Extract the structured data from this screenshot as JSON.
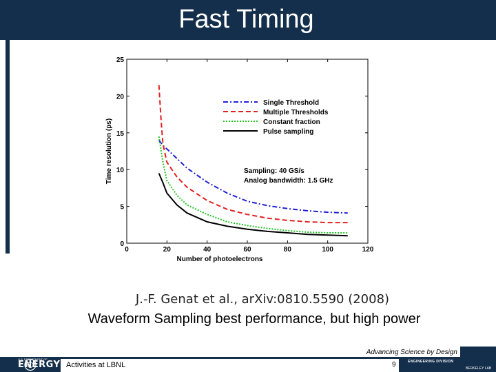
{
  "slide": {
    "title": "Fast Timing",
    "citation": "J.-F. Genat et al., arXiv:0810.5590 (2008)",
    "caption": "Waveform Sampling best performance, but high power",
    "tagline": "Advancing Science by Design",
    "footer_text": "Activities at LBNL",
    "page_number": "9",
    "doe_label": "ENERGY",
    "doe_small": "U.S. DEPARTMENT OF",
    "eng_label": "ENGINEERING DIVISION",
    "lab_label": "BERKELEY LAB"
  },
  "colors": {
    "header": "#142f4b",
    "single": "#1f1fd6",
    "multiple": "#e02020",
    "cfd": "#22c422",
    "pulse": "#000000"
  },
  "chart_data": {
    "type": "line",
    "xlabel": "Number of photoelectrons",
    "ylabel": "Time resolution (ps)",
    "xlim": [
      0,
      120
    ],
    "ylim": [
      0,
      25
    ],
    "xticks": [
      0,
      20,
      40,
      60,
      80,
      100,
      120
    ],
    "yticks": [
      0,
      5,
      10,
      15,
      20,
      25
    ],
    "legend_position": "top-right",
    "annotations": [
      "Sampling: 40 GS/s",
      "Analog bandwidth: 1.5 GHz"
    ],
    "series": [
      {
        "name": "Single Threshold",
        "style": "dashdot",
        "color": "#1f1fd6",
        "x": [
          16,
          18,
          20,
          25,
          30,
          40,
          50,
          60,
          70,
          80,
          90,
          100,
          110
        ],
        "y": [
          14.0,
          13.3,
          12.8,
          11.5,
          10.2,
          8.3,
          6.8,
          5.7,
          5.1,
          4.7,
          4.4,
          4.2,
          4.1
        ]
      },
      {
        "name": "Multiple Thresholds",
        "style": "dashed",
        "color": "#e02020",
        "x": [
          16,
          17,
          18,
          20,
          25,
          30,
          40,
          50,
          60,
          70,
          80,
          90,
          100,
          110
        ],
        "y": [
          21.5,
          17.0,
          13.5,
          11.0,
          9.0,
          7.6,
          5.8,
          4.6,
          3.9,
          3.4,
          3.1,
          2.9,
          2.8,
          2.8
        ]
      },
      {
        "name": "Constant fraction",
        "style": "dotted",
        "color": "#22c422",
        "x": [
          16,
          18,
          20,
          25,
          30,
          40,
          50,
          60,
          70,
          80,
          90,
          100,
          110
        ],
        "y": [
          14.5,
          11.0,
          8.5,
          6.5,
          5.2,
          3.9,
          2.9,
          2.4,
          2.0,
          1.7,
          1.5,
          1.4,
          1.4
        ]
      },
      {
        "name": "Pulse sampling",
        "style": "solid",
        "color": "#000000",
        "x": [
          16,
          18,
          20,
          25,
          30,
          40,
          50,
          60,
          70,
          80,
          90,
          100,
          110
        ],
        "y": [
          9.5,
          8.2,
          6.8,
          5.2,
          4.1,
          2.9,
          2.3,
          1.9,
          1.6,
          1.4,
          1.2,
          1.1,
          1.0
        ]
      }
    ]
  }
}
